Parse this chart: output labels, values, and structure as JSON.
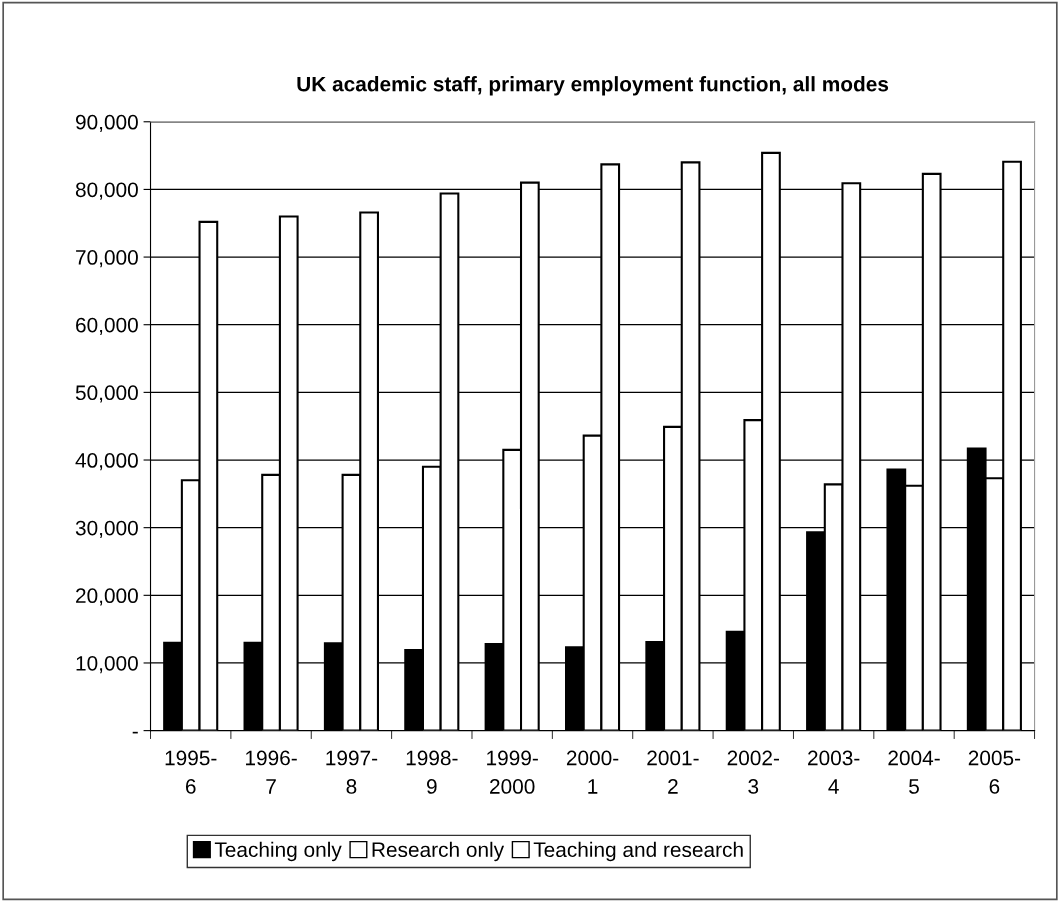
{
  "chart_data": {
    "type": "bar",
    "title": "UK academic staff, primary employment function, all modes",
    "categories": [
      "1995-\n6",
      "1996-\n7",
      "1997-\n8",
      "1998-\n9",
      "1999-\n2000",
      "2000-\n1",
      "2001-\n2",
      "2002-\n3",
      "2003-\n4",
      "2004-\n5",
      "2005-\n6"
    ],
    "series": [
      {
        "name": "Teaching only",
        "color": "#000000",
        "values": [
          13000,
          13000,
          12900,
          11900,
          12800,
          12300,
          13100,
          14600,
          29300,
          38600,
          41700
        ]
      },
      {
        "name": "Research only",
        "color": "#ffffff",
        "values": [
          37000,
          37800,
          37800,
          39000,
          41500,
          43600,
          44900,
          45900,
          36400,
          36200,
          37300
        ]
      },
      {
        "name": "Teaching and research",
        "color": "#ffffff",
        "values": [
          75200,
          76000,
          76600,
          79400,
          81000,
          83700,
          84000,
          85400,
          80900,
          82300,
          84100
        ]
      }
    ],
    "ylim": [
      0,
      90000
    ],
    "yticks": [
      {
        "value": 0,
        "label": "-"
      },
      {
        "value": 10000,
        "label": "10,000"
      },
      {
        "value": 20000,
        "label": "20,000"
      },
      {
        "value": 30000,
        "label": "30,000"
      },
      {
        "value": 40000,
        "label": "40,000"
      },
      {
        "value": 50000,
        "label": "50,000"
      },
      {
        "value": 60000,
        "label": "60,000"
      },
      {
        "value": 70000,
        "label": "70,000"
      },
      {
        "value": 80000,
        "label": "80,000"
      },
      {
        "value": 90000,
        "label": "90,000"
      }
    ],
    "grid": "y",
    "legend": "bottom"
  }
}
